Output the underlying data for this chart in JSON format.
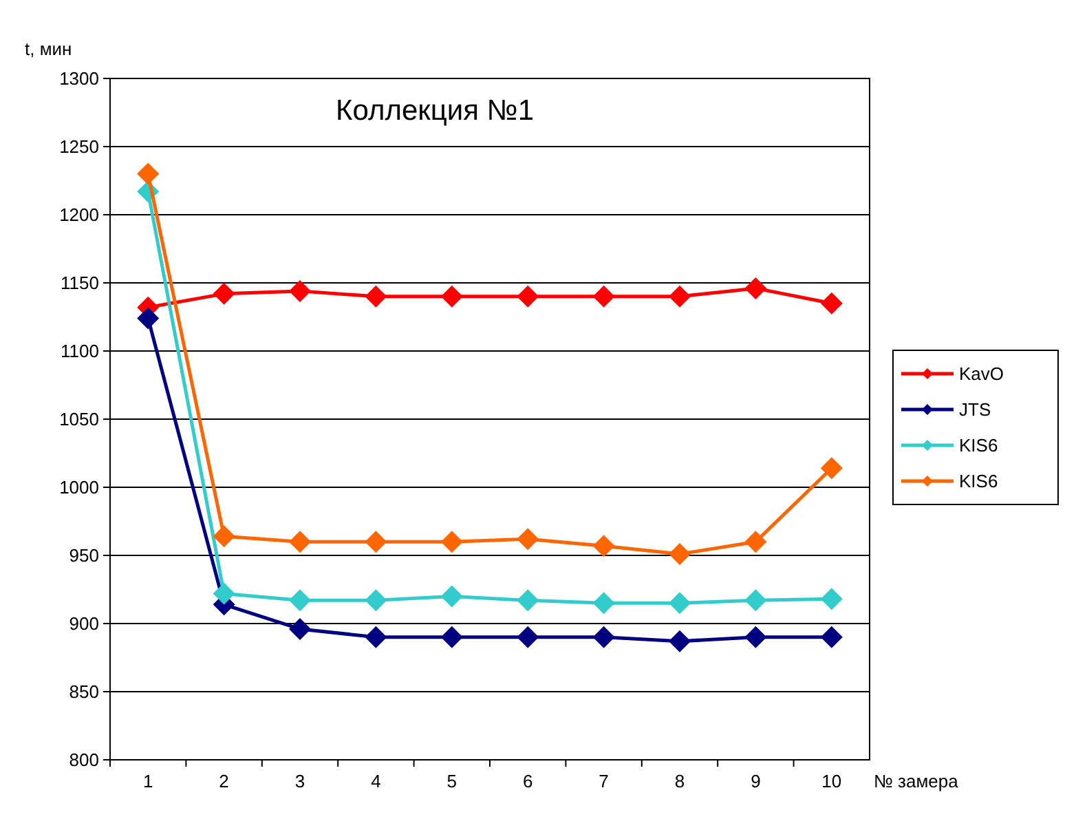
{
  "chart_data": {
    "type": "line",
    "title": "Коллекция №1",
    "xlabel": "№ замера",
    "ylabel": "t, мин",
    "categories": [
      "1",
      "2",
      "3",
      "4",
      "5",
      "6",
      "7",
      "8",
      "9",
      "10"
    ],
    "series": [
      {
        "name": "KavO",
        "color": "#ff0000",
        "values": [
          1132,
          1142,
          1144,
          1140,
          1140,
          1140,
          1140,
          1140,
          1146,
          1135
        ]
      },
      {
        "name": "JTS",
        "color": "#000080",
        "values": [
          1124,
          914,
          896,
          890,
          890,
          890,
          890,
          887,
          890,
          890
        ]
      },
      {
        "name": "KIS6",
        "color": "#33cccc",
        "values": [
          1217,
          922,
          917,
          917,
          920,
          917,
          915,
          915,
          917,
          918
        ]
      },
      {
        "name": "KIS6",
        "color": "#ff6600",
        "values": [
          1230,
          964,
          960,
          960,
          960,
          962,
          957,
          951,
          960,
          1014
        ]
      }
    ],
    "ylim": [
      800,
      1300
    ],
    "yticks": [
      800,
      850,
      900,
      950,
      1000,
      1050,
      1100,
      1150,
      1200,
      1250,
      1300
    ],
    "grid": "y",
    "legend": "right",
    "marker": "diamond",
    "line_style": "solid"
  }
}
